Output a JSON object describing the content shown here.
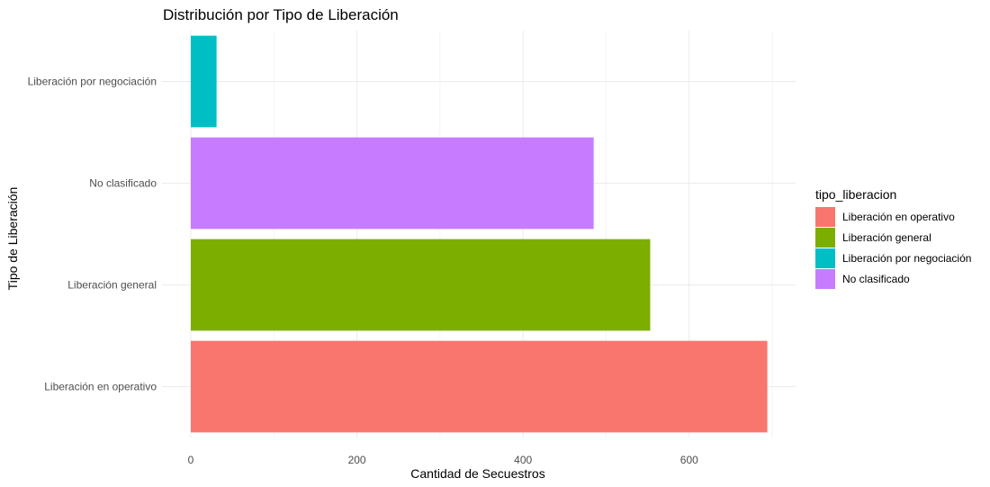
{
  "chart_data": {
    "type": "bar",
    "orientation": "horizontal",
    "title": "Distribución por Tipo de Liberación",
    "xlabel": "Cantidad de Secuestros",
    "ylabel": "Tipo de Liberación",
    "xlim": [
      0,
      730
    ],
    "x_ticks": [
      0,
      200,
      400,
      600
    ],
    "categories": [
      "Liberación en operativo",
      "Liberación general",
      "No clasificado",
      "Liberación por negociación"
    ],
    "values": [
      694,
      553,
      485,
      31
    ],
    "colors": [
      "#F8766D",
      "#7CAE00",
      "#00BFC4",
      "#C77CFF"
    ],
    "bar_colors": [
      "#F8766D",
      "#7CAE00",
      "#C77CFF",
      "#00BFC4"
    ],
    "grid": true,
    "legend": {
      "title": "tipo_liberacion",
      "position": "right",
      "entries": [
        {
          "label": "Liberación en operativo",
          "color": "#F8766D"
        },
        {
          "label": "Liberación general",
          "color": "#7CAE00"
        },
        {
          "label": "Liberación por negociación",
          "color": "#00BFC4"
        },
        {
          "label": "No clasificado",
          "color": "#C77CFF"
        }
      ]
    }
  }
}
